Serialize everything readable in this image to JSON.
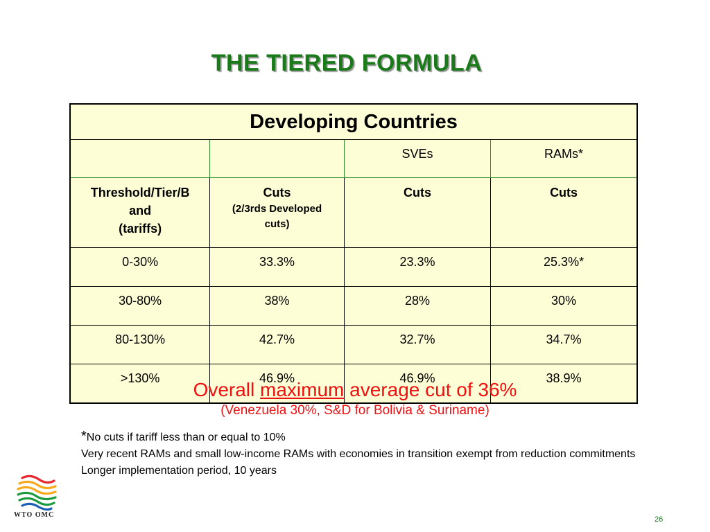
{
  "slide": {
    "title": "THE TIERED FORMULA",
    "page_number": "26"
  },
  "table": {
    "header": "Developing Countries",
    "subheaders": [
      "",
      "",
      "SVEs",
      "RAMs*"
    ],
    "columns": {
      "c1": {
        "line1": "Threshold/Tier/B",
        "line2": "and",
        "line3": "(tariffs)"
      },
      "c2": {
        "line1": "Cuts",
        "line2": "(2/3rds Developed",
        "line3": "cuts)"
      },
      "c3": "Cuts",
      "c4": "Cuts"
    },
    "rows": [
      [
        "0-30%",
        "33.3%",
        "23.3%",
        "25.3%*"
      ],
      [
        "30-80%",
        "38%",
        "28%",
        "30%"
      ],
      [
        "80-130%",
        "42.7%",
        "32.7%",
        "34.7%"
      ],
      [
        ">130%",
        "46.9%",
        "46.9%",
        "38.9%"
      ]
    ]
  },
  "summary": {
    "prefix": "Overall ",
    "underlined": "maximum",
    "suffix": " average cut of 36%",
    "detail": "(Venezuela 30%, S&D for Bolivia & Suriname)"
  },
  "notes": {
    "star": "*",
    "line1": "No cuts if tariff less than or equal to 10%",
    "line2": "Very recent RAMs and small low-income RAMs with economies in transition exempt from reduction commitments",
    "line3": "Longer implementation period, 10 years"
  },
  "logo": {
    "text": "WTO OMC",
    "icon": "wto-logo-icon",
    "colors": [
      "#e8262b",
      "#f7a81b",
      "#1b9a3e",
      "#1d5fb4"
    ]
  }
}
